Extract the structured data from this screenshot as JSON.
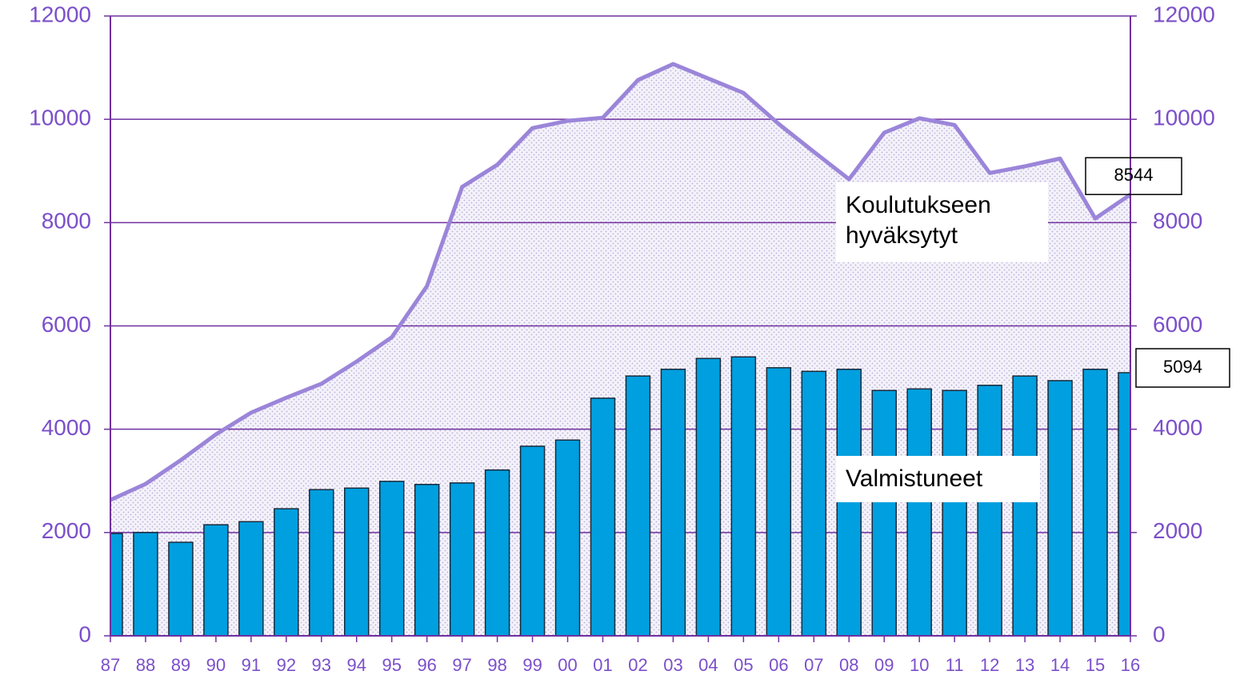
{
  "chart_data": {
    "type": "bar-line",
    "categories": [
      "87",
      "88",
      "89",
      "90",
      "91",
      "92",
      "93",
      "94",
      "95",
      "96",
      "97",
      "98",
      "99",
      "00",
      "01",
      "02",
      "03",
      "04",
      "05",
      "06",
      "07",
      "08",
      "09",
      "10",
      "11",
      "12",
      "13",
      "14",
      "15",
      "16"
    ],
    "series": [
      {
        "name": "Koulutukseen hyväksytyt",
        "kind": "area-line",
        "color": "#9b85d9",
        "values": [
          2630,
          2940,
          3400,
          3900,
          4320,
          4610,
          4880,
          5310,
          5780,
          6770,
          8690,
          9120,
          9830,
          9970,
          10030,
          10760,
          11070,
          10790,
          10510,
          9910,
          9370,
          8840,
          9740,
          10020,
          9890,
          8960,
          9090,
          9240,
          8080,
          8544
        ],
        "value_labels": [
          null,
          null,
          null,
          null,
          null,
          null,
          null,
          null,
          null,
          null,
          null,
          null,
          null,
          null,
          null,
          null,
          null,
          null,
          null,
          null,
          null,
          null,
          null,
          null,
          null,
          null,
          null,
          null,
          null,
          "8544"
        ]
      },
      {
        "name": "Valmistuneet",
        "kind": "bar",
        "color": "#009fdf",
        "axis": "y2",
        "values": [
          1980,
          2000,
          1810,
          2150,
          2210,
          2460,
          2830,
          2860,
          2990,
          2930,
          2960,
          3210,
          3670,
          3790,
          4600,
          5030,
          5160,
          5370,
          5400,
          5190,
          5120,
          5160,
          4750,
          4780,
          4750,
          4850,
          5030,
          4940,
          5160,
          5094
        ],
        "value_labels": [
          null,
          null,
          null,
          null,
          null,
          null,
          null,
          null,
          null,
          null,
          null,
          null,
          null,
          null,
          null,
          null,
          null,
          null,
          null,
          null,
          null,
          null,
          null,
          null,
          null,
          null,
          null,
          null,
          null,
          "5094"
        ]
      }
    ],
    "ylim": [
      0,
      12000
    ],
    "yticks": [
      0,
      2000,
      4000,
      6000,
      8000,
      10000,
      12000
    ],
    "y2lim": [
      0,
      12000
    ],
    "y2ticks": [
      0,
      2000,
      4000,
      6000,
      8000,
      10000,
      12000
    ],
    "grid": true
  }
}
